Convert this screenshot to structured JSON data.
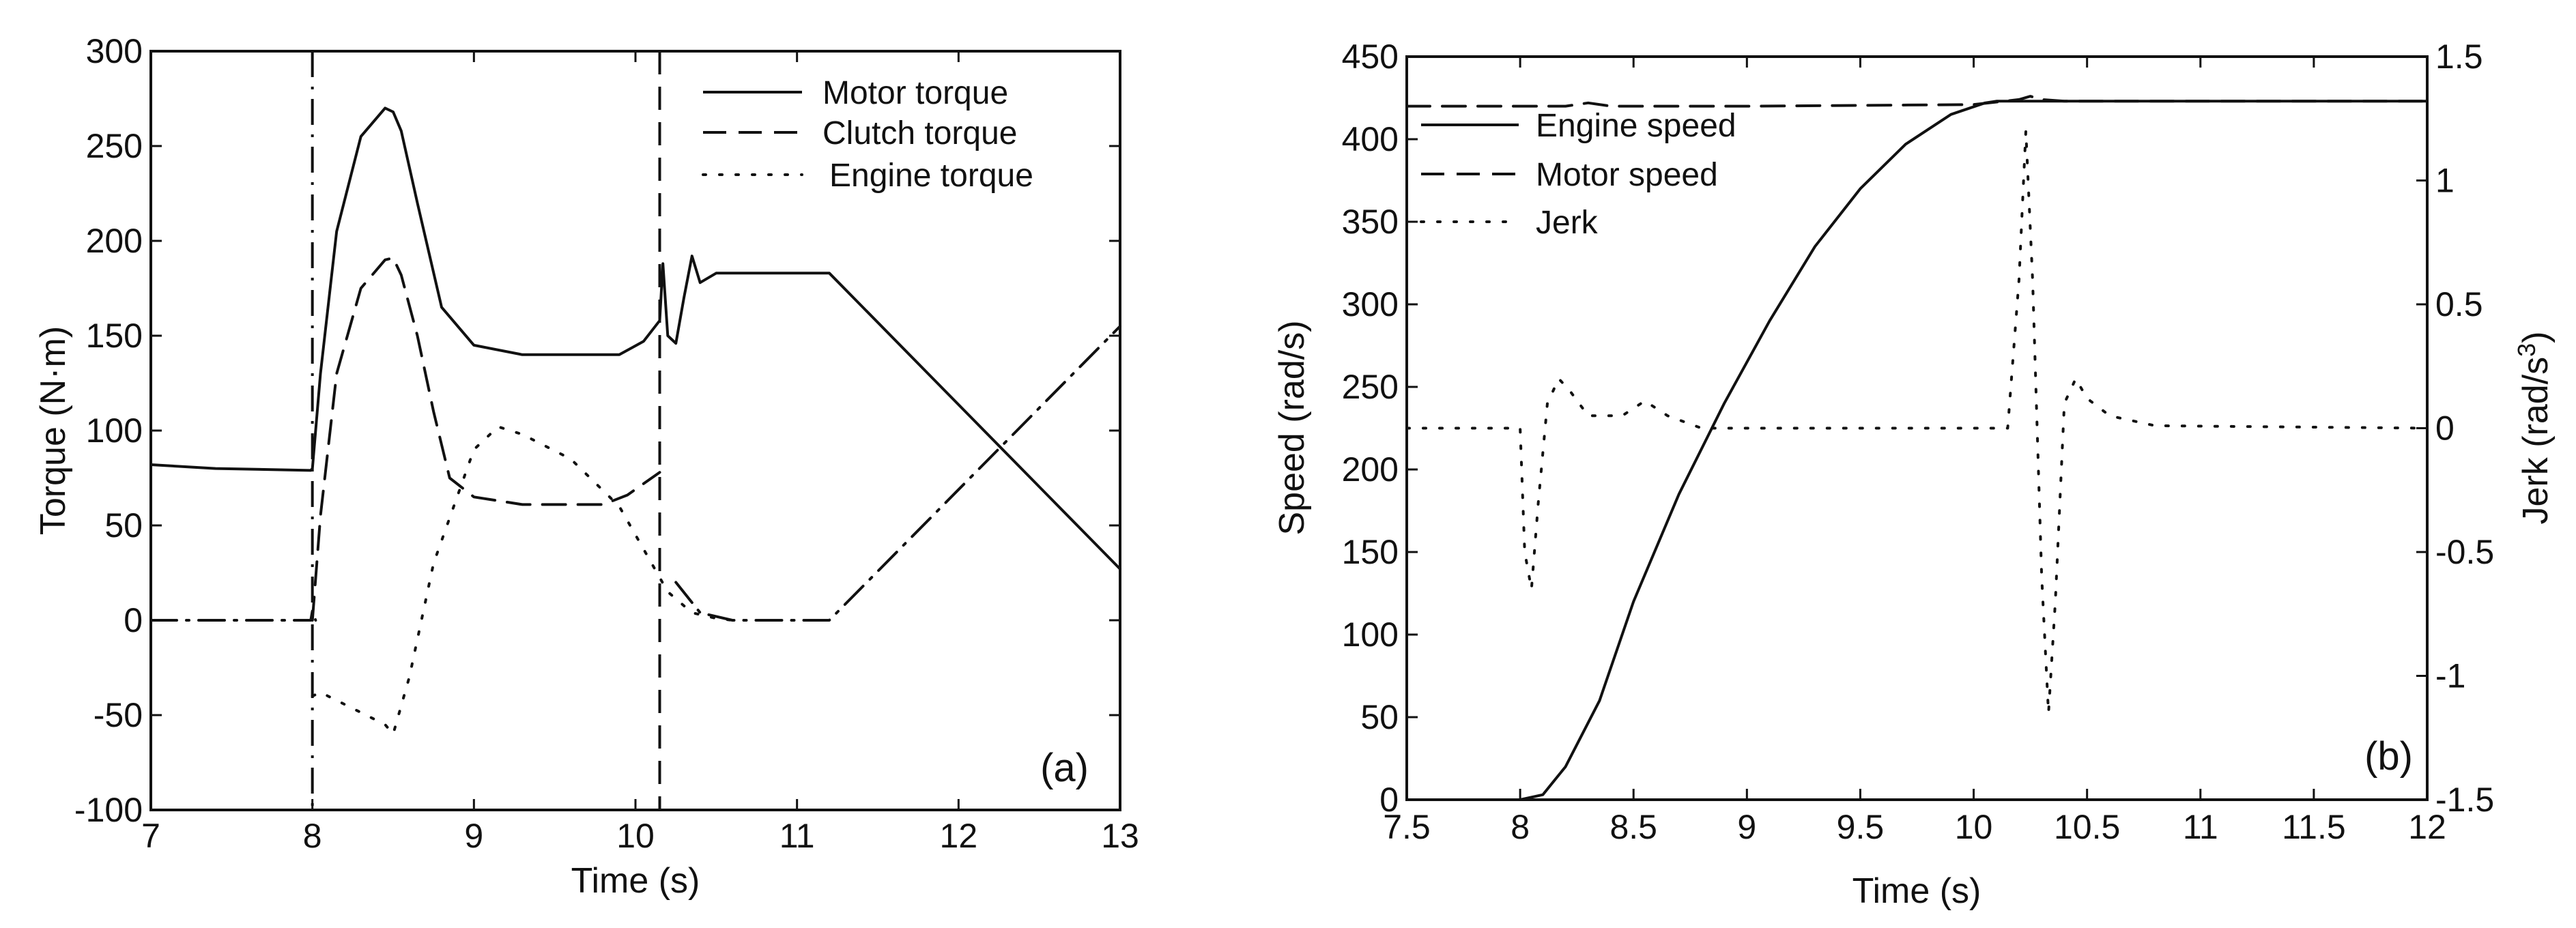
{
  "chart_data": [
    {
      "panel": "(a)",
      "type": "line",
      "xlabel": "Time (s)",
      "ylabel": "Torque (N·m)",
      "xlim": [
        7,
        13
      ],
      "ylim": [
        -100,
        300
      ],
      "xticks": [
        7,
        8,
        9,
        10,
        11,
        12,
        13
      ],
      "yticks": [
        -100,
        -50,
        0,
        50,
        100,
        150,
        200,
        250,
        300
      ],
      "vertical_markers": [
        {
          "x": 8.0,
          "style": "dashdot"
        },
        {
          "x": 10.15,
          "style": "dashed"
        }
      ],
      "legend": [
        {
          "label": "Motor torque",
          "style": "solid"
        },
        {
          "label": "Clutch torque",
          "style": "dashed"
        },
        {
          "label": "Engine torque",
          "style": "dotted"
        }
      ],
      "series": [
        {
          "name": "Motor torque",
          "style": "solid",
          "x": [
            7.0,
            7.4,
            7.99,
            8.0,
            8.05,
            8.15,
            8.3,
            8.45,
            8.5,
            8.55,
            8.65,
            8.8,
            9.0,
            9.3,
            9.9,
            10.05,
            10.15,
            10.17,
            10.2,
            10.25,
            10.3,
            10.35,
            10.4,
            10.5,
            10.6,
            11.2,
            13.0
          ],
          "y": [
            82,
            80,
            79,
            80,
            130,
            205,
            255,
            270,
            268,
            258,
            220,
            165,
            145,
            140,
            140,
            147,
            158,
            188,
            150,
            146,
            170,
            192,
            178,
            183,
            183,
            183,
            27
          ]
        },
        {
          "name": "Clutch torque",
          "style": "dashed",
          "x": [
            8.0,
            8.05,
            8.15,
            8.3,
            8.45,
            8.5,
            8.55,
            8.65,
            8.75,
            8.85,
            9.0,
            9.3,
            9.8,
            9.95,
            10.15
          ],
          "y": [
            0,
            55,
            130,
            175,
            190,
            191,
            182,
            150,
            110,
            75,
            65,
            61,
            61,
            66,
            78
          ]
        },
        {
          "name": "Engine torque",
          "style": "dotted",
          "x": [
            8.0,
            8.05,
            8.45,
            8.5,
            8.6,
            8.75,
            9.0,
            9.15,
            9.3,
            9.6,
            9.9,
            10.1,
            10.2,
            10.35,
            10.5,
            10.6
          ],
          "y": [
            -40,
            -38,
            -55,
            -60,
            -30,
            30,
            90,
            102,
            98,
            85,
            60,
            30,
            15,
            4,
            1,
            0
          ]
        },
        {
          "name": "Engine/clutch dash-dot",
          "style": "dashdot",
          "x": [
            7.0,
            7.99,
            8.0,
            8.02,
            10.15,
            10.25,
            10.4,
            10.6,
            11.2,
            13.0
          ],
          "y": [
            0,
            0,
            5,
            0,
            null,
            20,
            4,
            0,
            0,
            155
          ]
        }
      ]
    },
    {
      "panel": "(b)",
      "type": "line",
      "xlabel": "Time (s)",
      "ylabel": "Speed (rad/s)",
      "y2label": "Jerk (rad/s",
      "y2label_sup": "3",
      "y2label_close": ")",
      "xlim": [
        7.5,
        12
      ],
      "ylim": [
        0,
        450
      ],
      "y2lim": [
        -1.5,
        1.5
      ],
      "xticks": [
        7.5,
        8,
        8.5,
        9,
        9.5,
        10,
        10.5,
        11,
        11.5,
        12
      ],
      "yticks": [
        0,
        50,
        100,
        150,
        200,
        250,
        300,
        350,
        400,
        450
      ],
      "y2ticks": [
        -1.5,
        -1,
        -0.5,
        0,
        0.5,
        1,
        1.5
      ],
      "legend": [
        {
          "label": "Engine speed",
          "style": "solid"
        },
        {
          "label": "Motor speed",
          "style": "dashed"
        },
        {
          "label": "Jerk",
          "style": "dotted"
        }
      ],
      "series": [
        {
          "name": "Engine speed",
          "style": "solid",
          "axis": "left",
          "x": [
            7.5,
            8.0,
            8.1,
            8.2,
            8.35,
            8.5,
            8.7,
            8.9,
            9.1,
            9.3,
            9.5,
            9.7,
            9.9,
            10.05,
            10.1,
            12.0
          ],
          "y": [
            0,
            0,
            3,
            20,
            60,
            120,
            185,
            240,
            290,
            335,
            370,
            397,
            415,
            422,
            423,
            423
          ]
        },
        {
          "name": "Motor speed",
          "style": "dashed",
          "axis": "left",
          "x": [
            7.5,
            8.2,
            8.3,
            8.4,
            9.0,
            10.0,
            10.2,
            10.25,
            10.3,
            10.4,
            12.0
          ],
          "y": [
            420,
            420,
            422,
            420,
            420,
            421,
            424,
            426,
            424,
            423,
            423
          ]
        },
        {
          "name": "Jerk",
          "style": "dotted",
          "axis": "right",
          "x": [
            7.5,
            8.0,
            8.02,
            8.05,
            8.08,
            8.12,
            8.17,
            8.22,
            8.3,
            8.45,
            8.55,
            8.65,
            8.8,
            10.15,
            10.2,
            10.23,
            10.26,
            10.3,
            10.33,
            10.36,
            10.4,
            10.45,
            10.5,
            10.6,
            10.8,
            12.0
          ],
          "y": [
            0,
            0,
            -0.5,
            -0.65,
            -0.3,
            0.1,
            0.2,
            0.15,
            0.05,
            0.05,
            0.11,
            0.05,
            0.0,
            0.0,
            0.6,
            1.2,
            0.6,
            -0.6,
            -1.15,
            -0.7,
            0.1,
            0.2,
            0.12,
            0.05,
            0.01,
            0.0
          ]
        }
      ]
    }
  ]
}
